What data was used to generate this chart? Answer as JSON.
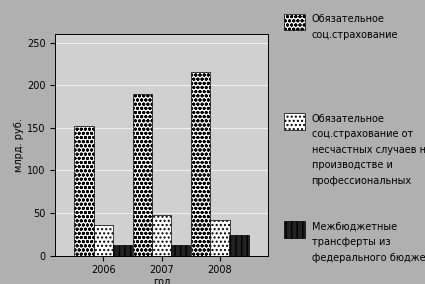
{
  "years": [
    "2006",
    "2007",
    "2008"
  ],
  "series": [
    {
      "name": "Обязательное\nсоц.страхование",
      "values": [
        152,
        190,
        216
      ],
      "hatch": "oooo",
      "facecolor": "white",
      "edgecolor": "black"
    },
    {
      "name": "Обязательное\nсоц.страхование от\nнесчастных случаев на\nпроизводстве и\nпрофессиональных",
      "values": [
        36,
        48,
        42
      ],
      "hatch": "....",
      "facecolor": "white",
      "edgecolor": "black"
    },
    {
      "name": "Межбюджетные\nтрансферты из\nфедерального бюджета",
      "values": [
        12,
        12,
        24
      ],
      "hatch": "|||",
      "facecolor": "#222222",
      "edgecolor": "black"
    }
  ],
  "ylabel": "млрд. руб.",
  "xlabel": "год",
  "ylim": [
    0,
    260
  ],
  "yticks": [
    0,
    50,
    100,
    150,
    200,
    250
  ],
  "bg_color": "#b0b0b0",
  "plot_bg_color": "#d0d0d0",
  "axis_fontsize": 7,
  "legend_fontsize": 7,
  "bar_width": 0.18,
  "group_positions": [
    0.55,
    1.1,
    1.65
  ],
  "legend_items": [
    {
      "label": "Обязательное\nсоц.страхование",
      "hatch": "oooo",
      "facecolor": "white",
      "edgecolor": "black"
    },
    {
      "label": "Обязательное\nсоц.страхование от\nнесчастных случаев на\nпроизводстве и\nпрофессиональных",
      "hatch": "....",
      "facecolor": "white",
      "edgecolor": "black"
    },
    {
      "label": "Межбюджетные\nтрансферты из\nфедерального бюджета",
      "hatch": "|||",
      "facecolor": "#222222",
      "edgecolor": "black"
    }
  ]
}
